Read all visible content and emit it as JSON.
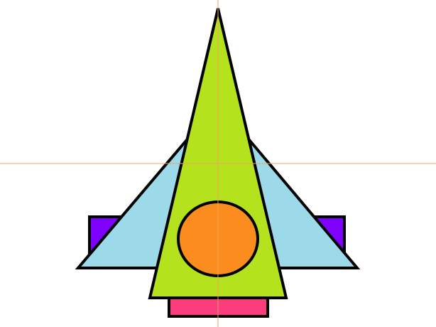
{
  "drawing": {
    "background_color": "#ffffff",
    "outline_color": "#000000",
    "guide_color": "#f5a25d",
    "colors": {
      "side_blocks": "#8000ff",
      "wings": "#9cdaea",
      "body": "#b4e31e",
      "window": "#fb8c1e",
      "exhaust": "#fb3e7b"
    },
    "shapes": [
      "side-block-left",
      "side-block-right",
      "wing-left",
      "wing-right",
      "body-triangle",
      "window-ellipse",
      "exhaust-block",
      "guide-line-vertical",
      "guide-line-horizontal"
    ]
  }
}
